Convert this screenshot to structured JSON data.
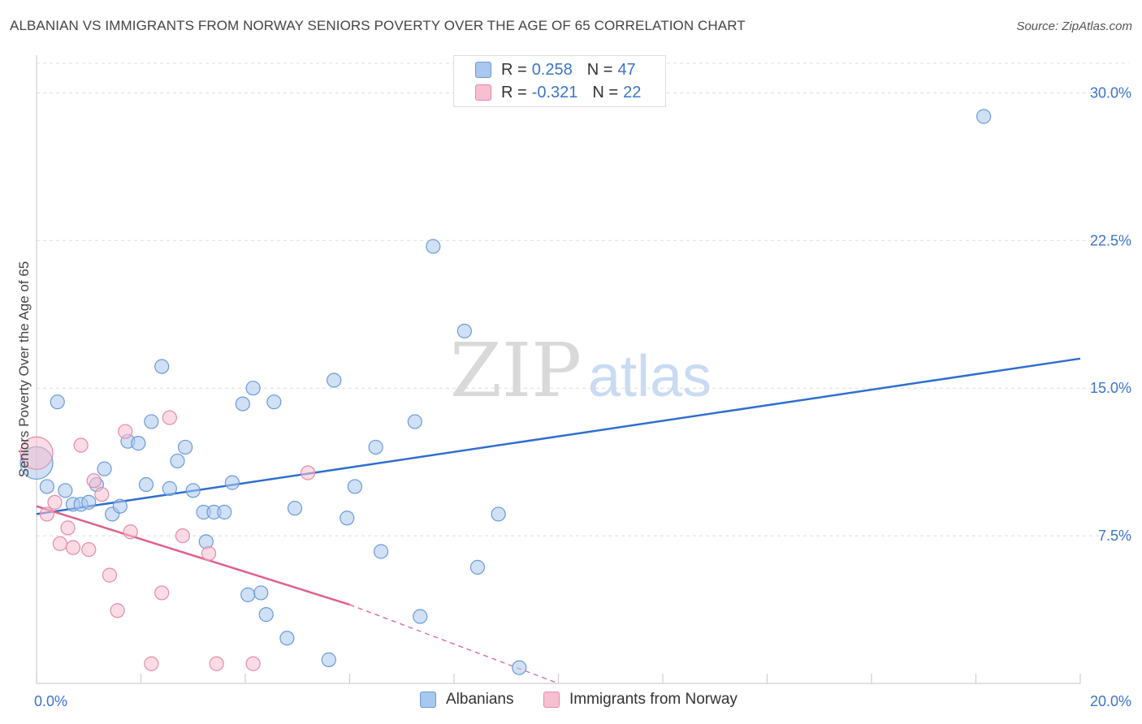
{
  "title": "ALBANIAN VS IMMIGRANTS FROM NORWAY SENIORS POVERTY OVER THE AGE OF 65 CORRELATION CHART",
  "source": "Source: ZipAtlas.com",
  "watermark": {
    "zip": "ZIP",
    "atlas": "atlas"
  },
  "colors": {
    "blue_fill": "#a9c8ef",
    "blue_stroke": "#6b9ad6",
    "blue_line": "#2f6fcf",
    "pink_fill": "#f7c0d0",
    "pink_stroke": "#e58aa8",
    "pink_line": "#e0608a",
    "tick_text": "#3b74c9",
    "grid": "#dcdcdc"
  },
  "legend": {
    "rows": [
      {
        "r_label": "R = ",
        "r_value": "0.258",
        "n_label": "N = ",
        "n_value": "47",
        "series": "albanians"
      },
      {
        "r_label": "R = ",
        "r_value": "-0.321",
        "n_label": "N = ",
        "n_value": "22",
        "series": "norway"
      }
    ]
  },
  "bottom_legend": [
    {
      "label": "Albanians",
      "series": "albanians"
    },
    {
      "label": "Immigrants from Norway",
      "series": "norway"
    }
  ],
  "chart_data": {
    "type": "scatter",
    "xlabel": "",
    "ylabel": "Seniors Poverty Over the Age of 65",
    "xlim": [
      0,
      20
    ],
    "ylim": [
      0,
      31.5
    ],
    "y_ticks": [
      {
        "value": 7.5,
        "label": "7.5%"
      },
      {
        "value": 15.0,
        "label": "15.0%"
      },
      {
        "value": 22.5,
        "label": "22.5%"
      },
      {
        "value": 30.0,
        "label": "30.0%"
      }
    ],
    "x_ticks": [
      {
        "value": 0,
        "label": "0.0%"
      },
      {
        "value": 20,
        "label": "20.0%"
      }
    ],
    "x_minor_ticks": [
      0,
      2,
      4,
      6,
      8,
      10,
      12,
      14,
      16,
      18,
      20
    ],
    "grid": true,
    "series": [
      {
        "name": "Albanians",
        "key": "albanians",
        "trend": {
          "x0": 0,
          "y0": 8.6,
          "x1": 20,
          "y1": 16.5
        },
        "points": [
          {
            "x": 0.0,
            "y": 11.2,
            "big": true
          },
          {
            "x": 0.2,
            "y": 10.0
          },
          {
            "x": 0.4,
            "y": 14.3
          },
          {
            "x": 0.55,
            "y": 9.8
          },
          {
            "x": 0.7,
            "y": 9.1
          },
          {
            "x": 0.85,
            "y": 9.1
          },
          {
            "x": 1.0,
            "y": 9.2
          },
          {
            "x": 1.15,
            "y": 10.1
          },
          {
            "x": 1.3,
            "y": 10.9
          },
          {
            "x": 1.45,
            "y": 8.6
          },
          {
            "x": 1.6,
            "y": 9.0
          },
          {
            "x": 1.75,
            "y": 12.3
          },
          {
            "x": 1.95,
            "y": 12.2
          },
          {
            "x": 2.1,
            "y": 10.1
          },
          {
            "x": 2.2,
            "y": 13.3
          },
          {
            "x": 2.4,
            "y": 16.1
          },
          {
            "x": 2.55,
            "y": 9.9
          },
          {
            "x": 2.7,
            "y": 11.3
          },
          {
            "x": 2.85,
            "y": 12.0
          },
          {
            "x": 3.0,
            "y": 9.8
          },
          {
            "x": 3.2,
            "y": 8.7
          },
          {
            "x": 3.25,
            "y": 7.2
          },
          {
            "x": 3.4,
            "y": 8.7
          },
          {
            "x": 3.6,
            "y": 8.7
          },
          {
            "x": 3.75,
            "y": 10.2
          },
          {
            "x": 3.95,
            "y": 14.2
          },
          {
            "x": 4.05,
            "y": 4.5
          },
          {
            "x": 4.15,
            "y": 15.0
          },
          {
            "x": 4.3,
            "y": 4.6
          },
          {
            "x": 4.4,
            "y": 3.5
          },
          {
            "x": 4.55,
            "y": 14.3
          },
          {
            "x": 4.8,
            "y": 2.3
          },
          {
            "x": 4.95,
            "y": 8.9
          },
          {
            "x": 5.7,
            "y": 15.4
          },
          {
            "x": 5.6,
            "y": 1.2
          },
          {
            "x": 5.95,
            "y": 8.4
          },
          {
            "x": 6.1,
            "y": 10.0
          },
          {
            "x": 6.5,
            "y": 12.0
          },
          {
            "x": 6.6,
            "y": 6.7
          },
          {
            "x": 7.25,
            "y": 13.3
          },
          {
            "x": 7.35,
            "y": 3.4
          },
          {
            "x": 7.6,
            "y": 22.2
          },
          {
            "x": 8.2,
            "y": 17.9
          },
          {
            "x": 8.45,
            "y": 5.9
          },
          {
            "x": 8.85,
            "y": 8.6
          },
          {
            "x": 9.25,
            "y": 0.8
          },
          {
            "x": 18.15,
            "y": 28.8
          }
        ]
      },
      {
        "name": "Immigrants from Norway",
        "key": "norway",
        "trend": {
          "x0": 0,
          "y0": 9.0,
          "x1": 6.0,
          "y1": 4.0
        },
        "trend_dashed": {
          "x0": 6.0,
          "y0": 4.0,
          "x1": 10.0,
          "y1": 0.0
        },
        "points": [
          {
            "x": 0.0,
            "y": 11.7,
            "big": true
          },
          {
            "x": 0.2,
            "y": 8.6
          },
          {
            "x": 0.35,
            "y": 9.2
          },
          {
            "x": 0.45,
            "y": 7.1
          },
          {
            "x": 0.6,
            "y": 7.9
          },
          {
            "x": 0.7,
            "y": 6.9
          },
          {
            "x": 0.85,
            "y": 12.1
          },
          {
            "x": 1.0,
            "y": 6.8
          },
          {
            "x": 1.1,
            "y": 10.3
          },
          {
            "x": 1.25,
            "y": 9.6
          },
          {
            "x": 1.4,
            "y": 5.5
          },
          {
            "x": 1.55,
            "y": 3.7
          },
          {
            "x": 1.7,
            "y": 12.8
          },
          {
            "x": 1.8,
            "y": 7.7
          },
          {
            "x": 2.2,
            "y": 1.0
          },
          {
            "x": 2.4,
            "y": 4.6
          },
          {
            "x": 2.55,
            "y": 13.5
          },
          {
            "x": 2.8,
            "y": 7.5
          },
          {
            "x": 3.3,
            "y": 6.6
          },
          {
            "x": 3.45,
            "y": 1.0
          },
          {
            "x": 4.15,
            "y": 1.0
          },
          {
            "x": 5.2,
            "y": 10.7
          }
        ]
      }
    ]
  }
}
